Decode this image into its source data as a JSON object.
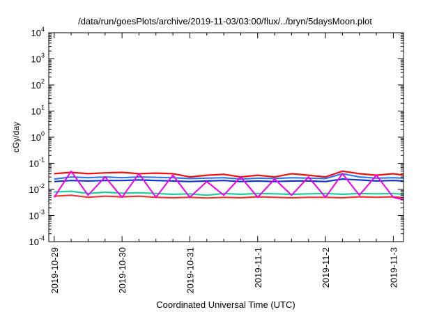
{
  "chart_data": {
    "type": "line",
    "title": "/data/run/goesPlots/archive/2019-11-03/03:00/flux/../bryn/5daysMoon.plot",
    "xlabel": "Coordinated Universal Time (UTC)",
    "ylabel": "cGy/day",
    "y_scale": "log",
    "ylim": [
      0.0001,
      10000
    ],
    "xlim": [
      -0.08,
      5.15
    ],
    "y_ticks": [
      {
        "value": 0.0001,
        "base": "10",
        "exp": "-4"
      },
      {
        "value": 0.001,
        "base": "10",
        "exp": "-3"
      },
      {
        "value": 0.01,
        "base": "10",
        "exp": "-2"
      },
      {
        "value": 0.1,
        "base": "10",
        "exp": "-1"
      },
      {
        "value": 1,
        "base": "10",
        "exp": "0"
      },
      {
        "value": 10,
        "base": "10",
        "exp": "1"
      },
      {
        "value": 100,
        "base": "10",
        "exp": "2"
      },
      {
        "value": 1000,
        "base": "10",
        "exp": "3"
      },
      {
        "value": 10000,
        "base": "10",
        "exp": "4"
      }
    ],
    "x_ticks": [
      {
        "value": 0,
        "label": "2019-10-29"
      },
      {
        "value": 1,
        "label": "2019-10-30"
      },
      {
        "value": 2,
        "label": "2019-10-31"
      },
      {
        "value": 3,
        "label": "2019-11-1"
      },
      {
        "value": 4,
        "label": "2019-11-2"
      },
      {
        "value": 5,
        "label": "2019-11-3"
      }
    ],
    "grid": false,
    "x": [
      0.0,
      0.25,
      0.5,
      0.75,
      1.0,
      1.25,
      1.5,
      1.75,
      2.0,
      2.25,
      2.5,
      2.75,
      3.0,
      3.25,
      3.5,
      3.75,
      4.0,
      4.25,
      4.5,
      4.75,
      5.0,
      5.15
    ],
    "series": [
      {
        "color": "#ee1111",
        "values": [
          0.04,
          0.045,
          0.04,
          0.043,
          0.045,
          0.04,
          0.042,
          0.04,
          0.03,
          0.035,
          0.038,
          0.03,
          0.035,
          0.03,
          0.04,
          0.035,
          0.03,
          0.05,
          0.04,
          0.035,
          0.04,
          0.035
        ]
      },
      {
        "color": "#3377ee",
        "values": [
          0.025,
          0.03,
          0.028,
          0.03,
          0.028,
          0.03,
          0.029,
          0.028,
          0.026,
          0.027,
          0.028,
          0.025,
          0.027,
          0.026,
          0.028,
          0.027,
          0.026,
          0.04,
          0.03,
          0.027,
          0.028,
          0.027
        ]
      },
      {
        "color": "#1133cc",
        "values": [
          0.02,
          0.022,
          0.021,
          0.022,
          0.022,
          0.023,
          0.022,
          0.021,
          0.02,
          0.021,
          0.022,
          0.02,
          0.021,
          0.02,
          0.021,
          0.021,
          0.02,
          0.025,
          0.023,
          0.021,
          0.022,
          0.021
        ]
      },
      {
        "color": "#22cc99",
        "values": [
          0.008,
          0.0085,
          0.007,
          0.0078,
          0.0072,
          0.0075,
          0.007,
          0.0065,
          0.0068,
          0.006,
          0.007,
          0.0065,
          0.007,
          0.0068,
          0.0065,
          0.0068,
          0.007,
          0.0065,
          0.007,
          0.0068,
          0.007,
          0.0065
        ]
      },
      {
        "color": "#ee3333",
        "values": [
          0.0055,
          0.006,
          0.005,
          0.0055,
          0.0052,
          0.0055,
          0.005,
          0.0048,
          0.005,
          0.0047,
          0.005,
          0.0048,
          0.0052,
          0.005,
          0.0048,
          0.005,
          0.005,
          0.0048,
          0.0052,
          0.005,
          0.0052,
          0.0048
        ]
      },
      {
        "color": "#ee00ee",
        "values": [
          0.005,
          0.05,
          0.006,
          0.03,
          0.005,
          0.04,
          0.005,
          0.035,
          0.005,
          0.02,
          0.006,
          0.03,
          0.005,
          0.025,
          0.006,
          0.03,
          0.005,
          0.04,
          0.006,
          0.035,
          0.005,
          0.004
        ]
      }
    ]
  }
}
